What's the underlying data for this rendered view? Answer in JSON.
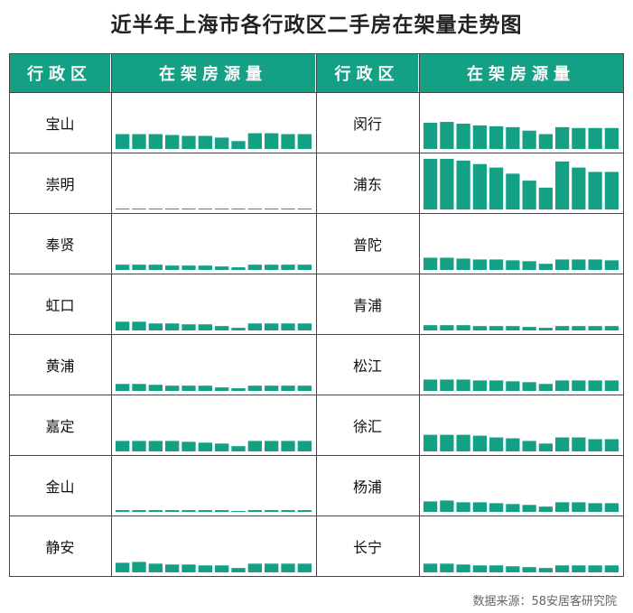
{
  "title": "近半年上海市各行政区二手房在架量走势图",
  "headers": {
    "district_left": "行政区",
    "listing_left": "在架房源量",
    "district_right": "行政区",
    "listing_right": "在架房源量"
  },
  "source": "数据来源：58安居客研究院",
  "colors": {
    "bar": "#13a085",
    "header": "#13a085"
  },
  "chart_data": {
    "type": "bar",
    "note_months": 12,
    "ylim": [
      0,
      60
    ],
    "districts_left": [
      {
        "name": "宝山",
        "values": [
          17,
          17,
          17,
          16,
          15,
          15,
          13,
          9,
          18,
          18,
          17,
          17
        ]
      },
      {
        "name": "崇明",
        "values": [
          1,
          1,
          1,
          1,
          1,
          1,
          1,
          1,
          1,
          1,
          1,
          1
        ]
      },
      {
        "name": "奉贤",
        "values": [
          6,
          6,
          6,
          5,
          5,
          5,
          4,
          3,
          6,
          6,
          6,
          6
        ]
      },
      {
        "name": "虹口",
        "values": [
          10,
          10,
          8,
          8,
          7,
          7,
          5,
          3,
          8,
          8,
          8,
          8
        ]
      },
      {
        "name": "黄浦",
        "values": [
          8,
          8,
          7,
          6,
          6,
          6,
          4,
          3,
          6,
          6,
          6,
          6
        ]
      },
      {
        "name": "嘉定",
        "values": [
          12,
          12,
          12,
          12,
          11,
          10,
          9,
          6,
          12,
          12,
          12,
          12
        ]
      },
      {
        "name": "金山",
        "values": [
          2,
          2,
          2,
          2,
          2,
          2,
          2,
          1,
          2,
          2,
          2,
          2
        ]
      },
      {
        "name": "静安",
        "values": [
          11,
          12,
          10,
          9,
          9,
          8,
          8,
          5,
          10,
          10,
          10,
          10
        ]
      }
    ],
    "districts_right": [
      {
        "name": "闵行",
        "values": [
          30,
          31,
          29,
          27,
          26,
          25,
          21,
          17,
          25,
          24,
          24,
          24
        ]
      },
      {
        "name": "浦东",
        "values": [
          58,
          58,
          56,
          52,
          48,
          41,
          33,
          25,
          55,
          48,
          43,
          43
        ]
      },
      {
        "name": "普陀",
        "values": [
          14,
          14,
          13,
          12,
          12,
          11,
          10,
          7,
          12,
          12,
          12,
          11
        ]
      },
      {
        "name": "青浦",
        "values": [
          6,
          6,
          6,
          5,
          5,
          5,
          4,
          3,
          5,
          5,
          5,
          5
        ]
      },
      {
        "name": "松江",
        "values": [
          13,
          13,
          13,
          12,
          12,
          11,
          10,
          8,
          12,
          12,
          12,
          12
        ]
      },
      {
        "name": "徐汇",
        "values": [
          19,
          19,
          19,
          18,
          16,
          15,
          12,
          9,
          16,
          16,
          14,
          14
        ]
      },
      {
        "name": "杨浦",
        "values": [
          12,
          13,
          11,
          11,
          10,
          9,
          8,
          6,
          11,
          11,
          10,
          10
        ]
      },
      {
        "name": "长宁",
        "values": [
          10,
          10,
          9,
          8,
          8,
          7,
          6,
          5,
          8,
          8,
          8,
          8
        ]
      }
    ]
  }
}
